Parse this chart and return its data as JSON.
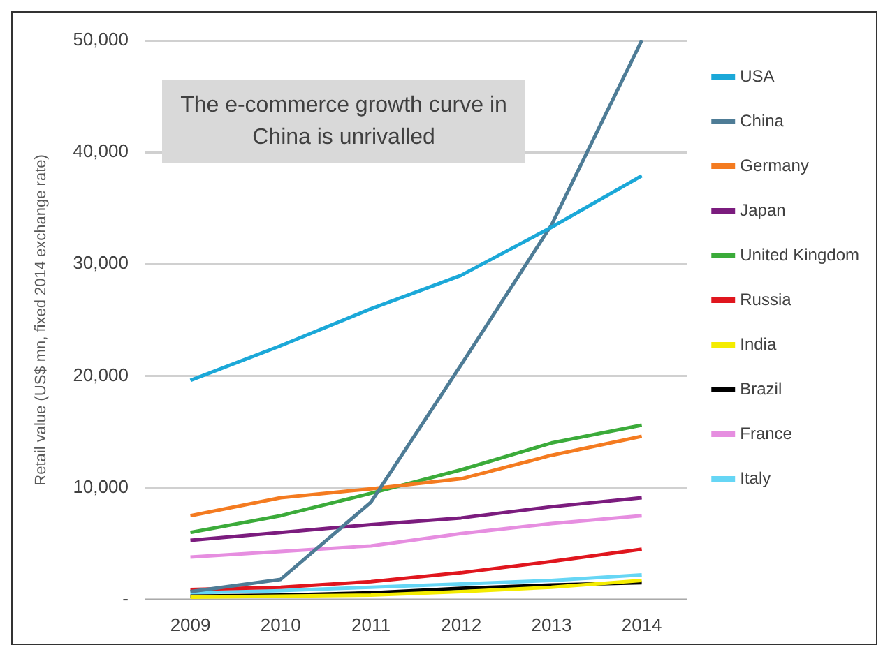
{
  "chart_data": {
    "type": "line",
    "ylabel": "Retail value (US$ mn, fixed 2014 exchange rate)",
    "annotations": [
      "The e-commerce growth curve in China is unrivalled"
    ],
    "categories": [
      "2009",
      "2010",
      "2011",
      "2012",
      "2013",
      "2014"
    ],
    "series": [
      {
        "name": "USA",
        "color": "#1ba8d8",
        "values": [
          19600,
          22700,
          26000,
          29000,
          33300,
          37900
        ]
      },
      {
        "name": "China",
        "color": "#4e7c96",
        "values": [
          700,
          1800,
          8700,
          21000,
          33500,
          50000
        ]
      },
      {
        "name": "Germany",
        "color": "#f47b20",
        "values": [
          7500,
          9100,
          9900,
          10800,
          12900,
          14600
        ]
      },
      {
        "name": "Japan",
        "color": "#7b1c7e",
        "values": [
          5300,
          6000,
          6700,
          7300,
          8300,
          9100
        ]
      },
      {
        "name": "United Kingdom",
        "color": "#3bab3a",
        "values": [
          6000,
          7500,
          9500,
          11600,
          14000,
          15600
        ]
      },
      {
        "name": "Russia",
        "color": "#e0161e",
        "values": [
          900,
          1100,
          1600,
          2400,
          3400,
          4500
        ]
      },
      {
        "name": "India",
        "color": "#f4ec00",
        "values": [
          200,
          300,
          400,
          700,
          1100,
          1700
        ]
      },
      {
        "name": "Brazil",
        "color": "#000000",
        "values": [
          300,
          400,
          600,
          1000,
          1300,
          1500
        ]
      },
      {
        "name": "France",
        "color": "#e68ee0",
        "values": [
          3800,
          4300,
          4800,
          5900,
          6800,
          7500
        ]
      },
      {
        "name": "Italy",
        "color": "#66d6f5",
        "values": [
          600,
          800,
          1100,
          1400,
          1700,
          2200
        ]
      }
    ],
    "ylim": [
      0,
      50000
    ],
    "yticks": [
      {
        "value": 0,
        "label": "-"
      },
      {
        "value": 10000,
        "label": "10,000"
      },
      {
        "value": 20000,
        "label": "20,000"
      },
      {
        "value": 30000,
        "label": "30,000"
      },
      {
        "value": 40000,
        "label": "40,000"
      },
      {
        "value": 50000,
        "label": "50,000"
      }
    ],
    "grid": "y",
    "legend": "right",
    "marker": "none",
    "line_style": "solid"
  }
}
